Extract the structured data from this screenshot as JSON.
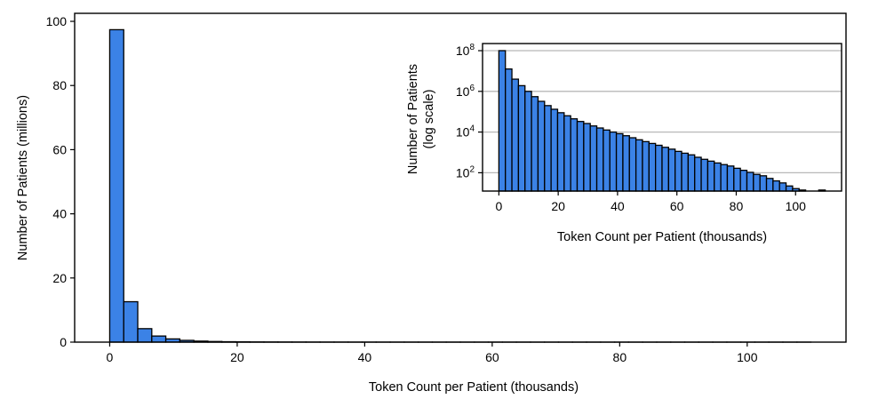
{
  "chart_data": [
    {
      "name": "main",
      "type": "bar",
      "xlabel": "Token Count per Patient (thousands)",
      "ylabel": "Number of Patients (millions)",
      "xlim": [
        -5.5,
        115.5
      ],
      "ylim": [
        0,
        102.5
      ],
      "x_ticks": [
        0,
        20,
        40,
        60,
        80,
        100
      ],
      "y_ticks": [
        0,
        20,
        40,
        60,
        80,
        100
      ],
      "bin_width": 2.2,
      "bin_starts": [
        0,
        2.2,
        4.4,
        6.6,
        8.8,
        11,
        13.2,
        15.4,
        17.6,
        19.8,
        22,
        24.2,
        26.4,
        28.6,
        30.8,
        33,
        35.2,
        37.4,
        39.6,
        41.8,
        44,
        46.2,
        48.4,
        50.6,
        52.8,
        55,
        57.2,
        59.4,
        61.6,
        63.8,
        66,
        68.2,
        70.4,
        72.6,
        74.8,
        77,
        79.2,
        81.4,
        83.6,
        85.8,
        88,
        90.2,
        92.4,
        94.6,
        96.8,
        99,
        101.2,
        103.4,
        105.6,
        107.8
      ],
      "values": [
        97.4,
        12.6,
        4.2,
        1.9,
        1.0,
        0.55,
        0.32,
        0.2,
        0.13,
        0.09,
        0.06,
        0.045,
        0.035,
        0.027,
        0.021,
        0.016,
        0.013,
        0.01,
        0.008,
        0.0065,
        0.0052,
        0.0042,
        0.0034,
        0.0027,
        0.0022,
        0.0018,
        0.0014,
        0.0011,
        0.0009,
        0.0007,
        0.00058,
        0.00046,
        0.00037,
        0.0003,
        0.00025,
        0.00021,
        0.00017,
        0.00013,
        0.0001,
        8e-05,
        7e-05,
        5e-05,
        4e-05,
        3e-05,
        2e-05,
        1.5e-05,
        1.3e-05,
        1.2e-05,
        1.1e-05,
        1.3e-05
      ]
    },
    {
      "name": "inset",
      "type": "bar",
      "xlabel": "Token Count per Patient (thousands)",
      "ylabel": [
        "Number of Patients",
        "(log scale)"
      ],
      "yscale": "log",
      "xlim": [
        -5.5,
        115.5
      ],
      "ylim_log10": [
        1.1,
        8.35
      ],
      "x_ticks": [
        0,
        20,
        40,
        60,
        80,
        100
      ],
      "y_ticks_exponent": [
        2,
        4,
        6,
        8
      ],
      "y_tick_base": "10",
      "grid": "y",
      "bin_width": 2.2,
      "bin_starts": [
        0,
        2.2,
        4.4,
        6.6,
        8.8,
        11,
        13.2,
        15.4,
        17.6,
        19.8,
        22,
        24.2,
        26.4,
        28.6,
        30.8,
        33,
        35.2,
        37.4,
        39.6,
        41.8,
        44,
        46.2,
        48.4,
        50.6,
        52.8,
        55,
        57.2,
        59.4,
        61.6,
        63.8,
        66,
        68.2,
        70.4,
        72.6,
        74.8,
        77,
        79.2,
        81.4,
        83.6,
        85.8,
        88,
        90.2,
        92.4,
        94.6,
        96.8,
        99,
        101.2,
        103.4,
        105.6,
        107.8
      ],
      "log10_values": [
        8.0,
        7.1,
        6.6,
        6.28,
        6.0,
        5.74,
        5.51,
        5.3,
        5.12,
        4.95,
        4.8,
        4.65,
        4.52,
        4.42,
        4.3,
        4.2,
        4.1,
        4.0,
        3.92,
        3.82,
        3.72,
        3.62,
        3.53,
        3.44,
        3.35,
        3.25,
        3.16,
        3.05,
        2.96,
        2.88,
        2.76,
        2.66,
        2.57,
        2.48,
        2.4,
        2.33,
        2.22,
        2.12,
        2.02,
        1.92,
        1.85,
        1.72,
        1.6,
        1.5,
        1.35,
        1.22,
        1.15,
        1.1,
        1.1,
        1.15
      ]
    }
  ]
}
